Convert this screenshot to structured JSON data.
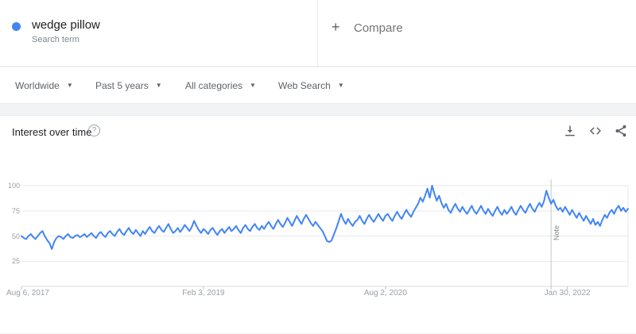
{
  "page": {
    "accent_color": "#4285f4",
    "background": "#f1f3f4"
  },
  "term_card": {
    "title": "wedge pillow",
    "subtitle": "Search term",
    "dot_color": "#4285f4"
  },
  "compare_card": {
    "plus_icon": "+",
    "label": "Compare"
  },
  "filters": [
    {
      "label": "Worldwide",
      "caret_icon": "▼"
    },
    {
      "label": "Past 5 years",
      "caret_icon": "▼"
    },
    {
      "label": "All categories",
      "caret_icon": "▼"
    },
    {
      "label": "Web Search",
      "caret_icon": "▼"
    }
  ],
  "chart_card": {
    "title": "Interest over time",
    "help_icon": "?",
    "actions": [
      "download-icon",
      "embed-icon",
      "share-icon"
    ]
  },
  "chart_data": {
    "type": "line",
    "title": "Interest over time",
    "series_name": "wedge pillow",
    "line_color": "#4285f4",
    "grid_color": "#e9eaed",
    "axis_color": "#dadce0",
    "note_line_color": "#c4c7ca",
    "ylim": [
      0,
      100
    ],
    "grid": true,
    "legend_position": "none",
    "y_ticks": [
      100,
      75,
      50,
      25
    ],
    "x_ticks": [
      {
        "label": "Aug 6, 2017",
        "week": 0
      },
      {
        "label": "Feb 3, 2019",
        "week": 78
      },
      {
        "label": "Aug 2, 2020",
        "week": 156
      },
      {
        "label": "Jan 30, 2022",
        "week": 234
      }
    ],
    "note_label": "Note",
    "note_week_index": 227,
    "values": [
      50,
      48,
      47,
      50,
      52,
      49,
      47,
      50,
      53,
      55,
      50,
      46,
      43,
      37,
      44,
      48,
      50,
      49,
      47,
      50,
      52,
      49,
      48,
      50,
      51,
      49,
      50,
      52,
      49,
      51,
      53,
      50,
      48,
      52,
      54,
      51,
      49,
      53,
      55,
      52,
      50,
      54,
      57,
      53,
      51,
      55,
      58,
      54,
      52,
      56,
      53,
      50,
      55,
      52,
      56,
      59,
      55,
      53,
      57,
      60,
      56,
      54,
      58,
      62,
      57,
      53,
      55,
      58,
      54,
      57,
      61,
      58,
      55,
      59,
      65,
      60,
      56,
      53,
      57,
      55,
      52,
      56,
      58,
      54,
      51,
      55,
      57,
      53,
      56,
      59,
      55,
      57,
      60,
      56,
      53,
      58,
      61,
      57,
      55,
      59,
      62,
      58,
      56,
      60,
      57,
      61,
      64,
      60,
      57,
      62,
      66,
      62,
      59,
      63,
      68,
      64,
      60,
      65,
      70,
      66,
      62,
      67,
      71,
      67,
      63,
      60,
      64,
      61,
      58,
      55,
      50,
      45,
      44,
      46,
      52,
      58,
      65,
      72,
      66,
      62,
      67,
      63,
      60,
      64,
      66,
      70,
      65,
      62,
      67,
      71,
      67,
      64,
      68,
      72,
      68,
      65,
      70,
      72,
      68,
      65,
      70,
      74,
      70,
      67,
      72,
      76,
      72,
      69,
      74,
      78,
      82,
      88,
      84,
      90,
      97,
      88,
      100,
      92,
      85,
      90,
      83,
      78,
      82,
      76,
      73,
      78,
      82,
      77,
      74,
      79,
      75,
      72,
      76,
      80,
      75,
      72,
      76,
      80,
      75,
      72,
      77,
      73,
      70,
      75,
      79,
      74,
      71,
      76,
      72,
      75,
      79,
      74,
      71,
      76,
      80,
      76,
      73,
      78,
      82,
      77,
      74,
      79,
      83,
      79,
      85,
      95,
      88,
      82,
      86,
      80,
      76,
      78,
      74,
      79,
      75,
      71,
      76,
      72,
      68,
      73,
      69,
      65,
      70,
      66,
      62,
      67,
      61,
      64,
      60,
      66,
      71,
      68,
      73,
      76,
      72,
      77,
      80,
      75,
      78,
      74,
      77
    ]
  }
}
